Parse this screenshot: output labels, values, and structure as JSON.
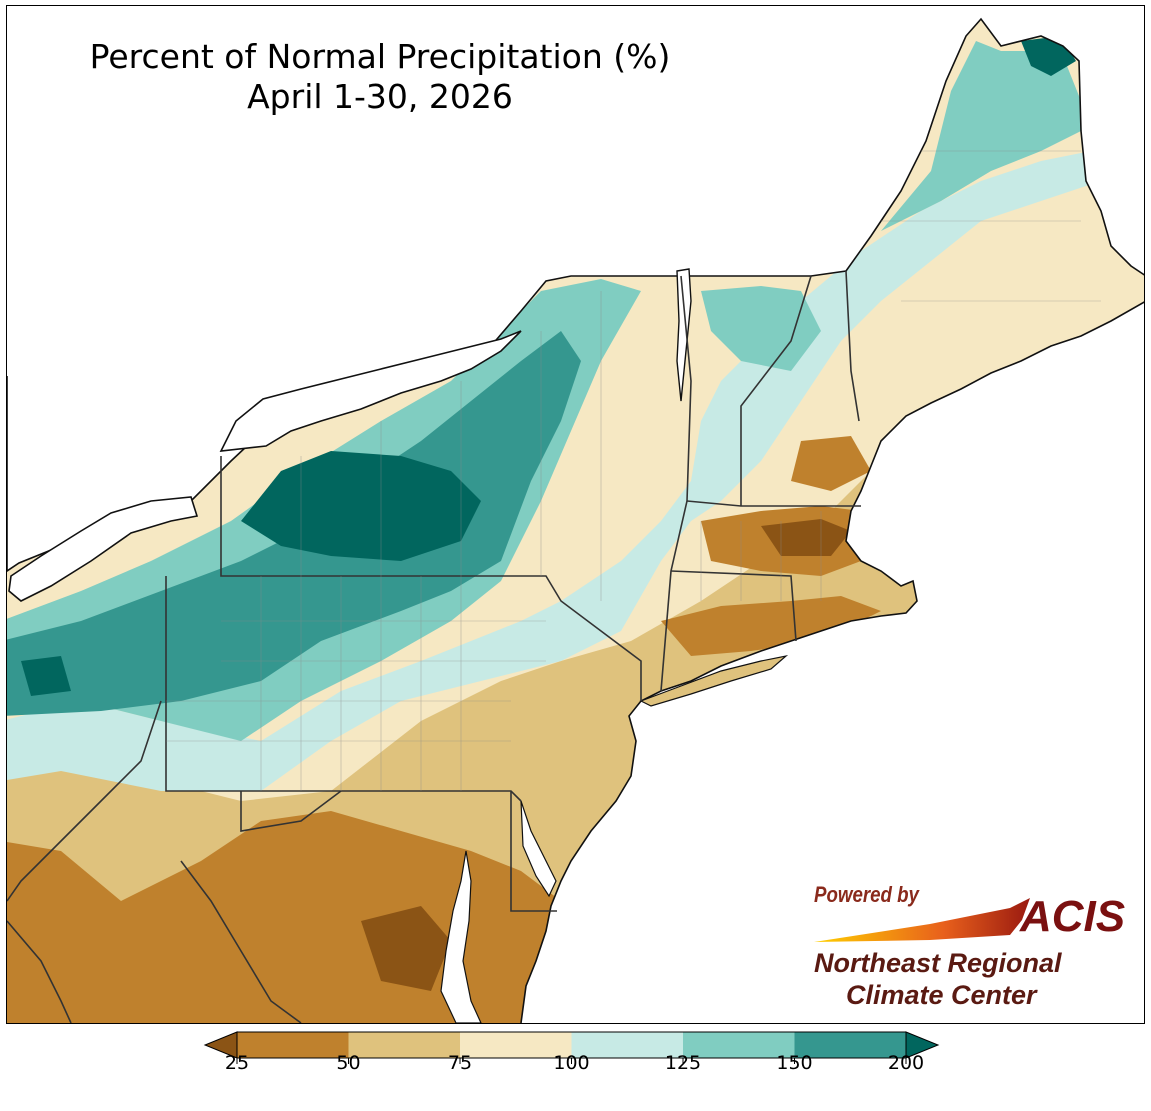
{
  "title": {
    "line1": "Percent of Normal Precipitation (%)",
    "line2": "April 1-30, 2026"
  },
  "logo": {
    "powered_by": "Powered by",
    "acis": "ACIS",
    "line1": "Northeast Regional",
    "line2": "Climate Center"
  },
  "legend": {
    "bins": [
      {
        "range": "<25",
        "color": "#8b5415"
      },
      {
        "range": "25-50",
        "color": "#bf812d"
      },
      {
        "range": "50-75",
        "color": "#dfc27d"
      },
      {
        "range": "75-100",
        "color": "#f6e8c3"
      },
      {
        "range": "100-125",
        "color": "#c7eae5"
      },
      {
        "range": "125-150",
        "color": "#80cdc1"
      },
      {
        "range": "150-200",
        "color": "#35978f"
      },
      {
        "range": ">200",
        "color": "#01665e"
      }
    ],
    "ticks": [
      "25",
      "50",
      "75",
      "100",
      "125",
      "150",
      "200"
    ]
  },
  "colors": {
    "water": "#ffffff",
    "state_border": "#333333",
    "county_border": "#8a8a8a"
  }
}
